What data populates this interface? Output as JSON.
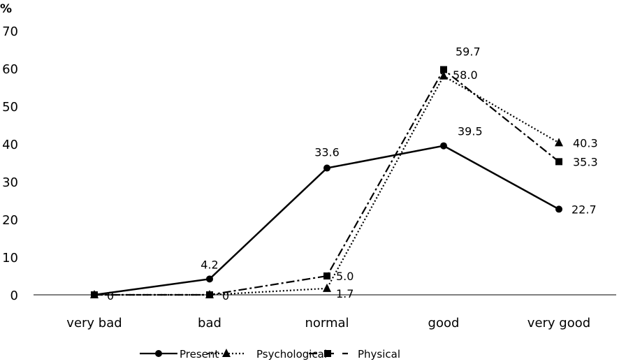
{
  "chart_data": {
    "type": "line",
    "title": "",
    "ylabel": "%",
    "xlabel": "",
    "ylim": [
      0,
      70
    ],
    "yticks": [
      0,
      10,
      20,
      30,
      40,
      50,
      60,
      70
    ],
    "grid": false,
    "legend_position": "bottom",
    "categories": [
      "very bad",
      "bad",
      "normal",
      "good",
      "very good"
    ],
    "series": [
      {
        "name": "Present",
        "values": [
          0,
          4.2,
          33.6,
          39.5,
          22.7
        ],
        "labels": [
          "",
          "4.2",
          "33.6",
          "39.5",
          "22.7"
        ],
        "marker": "circle",
        "line": "solid",
        "color": "#000000"
      },
      {
        "name": "Psychological",
        "values": [
          0,
          0,
          1.7,
          58.0,
          40.3
        ],
        "labels": [
          "",
          "",
          "1.7",
          "58.0",
          "40.3"
        ],
        "marker": "triangle",
        "line": "dotted",
        "color": "#000000"
      },
      {
        "name": "Physical",
        "values": [
          0,
          0,
          5.0,
          59.7,
          35.3
        ],
        "labels": [
          "0",
          "0",
          "5.0",
          "59.7",
          "35.3"
        ],
        "marker": "square",
        "line": "dashdot",
        "color": "#000000"
      }
    ]
  }
}
